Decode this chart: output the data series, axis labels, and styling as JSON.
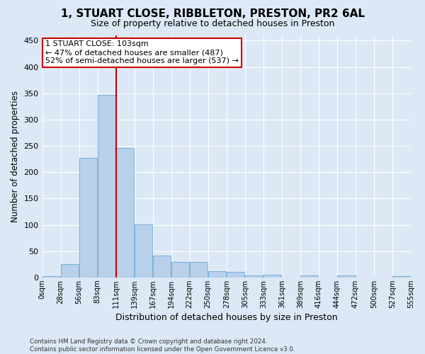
{
  "title": "1, STUART CLOSE, RIBBLETON, PRESTON, PR2 6AL",
  "subtitle": "Size of property relative to detached houses in Preston",
  "xlabel": "Distribution of detached houses by size in Preston",
  "ylabel": "Number of detached properties",
  "bar_color": "#b8d0ea",
  "bar_edge_color": "#6aaad4",
  "background_color": "#dce8f5",
  "fig_background_color": "#dce8f5",
  "grid_color": "#ffffff",
  "annotation_line_color": "#cc0000",
  "annotation_text_line1": "1 STUART CLOSE: 103sqm",
  "annotation_text_line2": "← 47% of detached houses are smaller (487)",
  "annotation_text_line3": "52% of semi-detached houses are larger (537) →",
  "footer_line1": "Contains HM Land Registry data © Crown copyright and database right 2024.",
  "footer_line2": "Contains public sector information licensed under the Open Government Licence v3.0.",
  "tick_labels": [
    "0sqm",
    "28sqm",
    "56sqm",
    "83sqm",
    "111sqm",
    "139sqm",
    "167sqm",
    "194sqm",
    "222sqm",
    "250sqm",
    "278sqm",
    "305sqm",
    "333sqm",
    "361sqm",
    "389sqm",
    "416sqm",
    "444sqm",
    "472sqm",
    "500sqm",
    "527sqm",
    "555sqm"
  ],
  "values": [
    3,
    25,
    227,
    347,
    246,
    101,
    41,
    30,
    30,
    12,
    10,
    4,
    5,
    0,
    4,
    0,
    4,
    0,
    0,
    3
  ],
  "red_line_x": 4.0,
  "ylim": [
    0,
    460
  ],
  "yticks": [
    0,
    50,
    100,
    150,
    200,
    250,
    300,
    350,
    400,
    450
  ]
}
